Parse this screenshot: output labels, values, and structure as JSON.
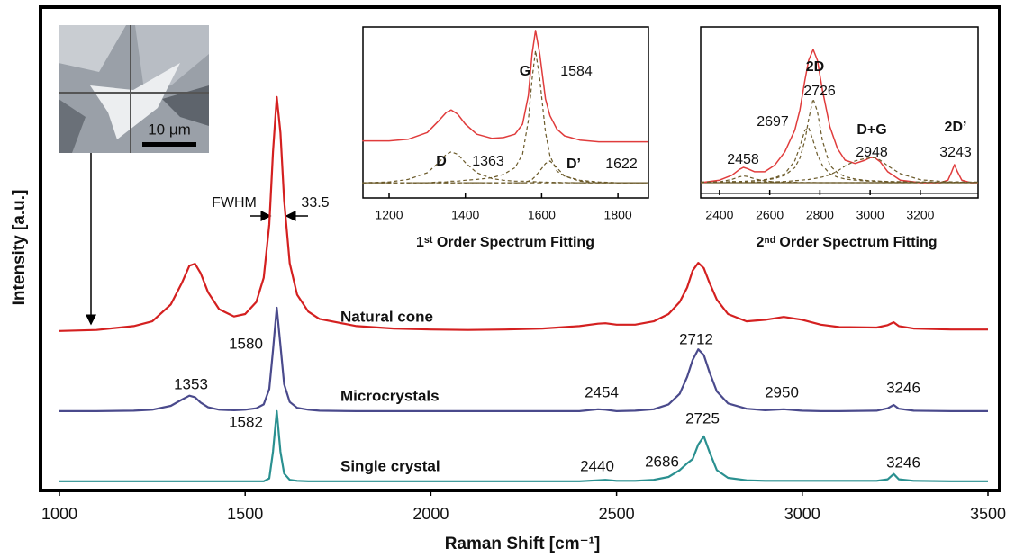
{
  "chart_data": [
    {
      "type": "line",
      "x_label": "Raman Shift [cm⁻¹]",
      "y_label": "Intensity [a.u.]",
      "xlim": [
        1000,
        3500
      ],
      "xticks": [
        1000,
        1500,
        2000,
        2500,
        3000,
        3500
      ],
      "ylim": [
        0,
        100
      ],
      "x": [
        1000,
        1100,
        1200,
        1250,
        1300,
        1330,
        1350,
        1365,
        1380,
        1400,
        1430,
        1470,
        1500,
        1530,
        1550,
        1565,
        1575,
        1585,
        1595,
        1605,
        1620,
        1640,
        1670,
        1700,
        1800,
        1900,
        2000,
        2100,
        2200,
        2300,
        2400,
        2450,
        2470,
        2500,
        2550,
        2600,
        2640,
        2670,
        2690,
        2705,
        2720,
        2735,
        2750,
        2770,
        2800,
        2850,
        2900,
        2950,
        3000,
        3050,
        3100,
        3200,
        3230,
        3246,
        3260,
        3300,
        3400,
        3500
      ],
      "series": [
        {
          "name": "Natural cone",
          "color": "#d42020",
          "peak_labels": [],
          "values": [
            33,
            33.2,
            34,
            35,
            38.5,
            43,
            46.5,
            46.9,
            45,
            41,
            37.5,
            36,
            36.5,
            39,
            44,
            55,
            70,
            81.4,
            74,
            60,
            47,
            40.5,
            37,
            35.5,
            34,
            33.5,
            33.3,
            33.2,
            33.3,
            33.5,
            34,
            34.5,
            34.6,
            34.3,
            34.3,
            35,
            36.5,
            39,
            42,
            45.5,
            47.1,
            46,
            43,
            39.5,
            36.5,
            35,
            35.3,
            35.9,
            35.3,
            34.3,
            33.8,
            33.7,
            34.2,
            34.8,
            34,
            33.5,
            33.3,
            33.3
          ]
        },
        {
          "name": "Microcrystals",
          "color": "#4a4a8c",
          "peak_labels": [
            1353,
            1580,
            2712,
            2454,
            2950,
            3246
          ],
          "values": [
            16.4,
            16.4,
            16.5,
            16.7,
            17.5,
            18.8,
            19.6,
            19.3,
            18.2,
            17.2,
            16.7,
            16.6,
            16.7,
            17,
            17.8,
            21,
            29,
            37.8,
            30,
            22,
            18.3,
            17.1,
            16.7,
            16.5,
            16.4,
            16.4,
            16.4,
            16.4,
            16.4,
            16.4,
            16.4,
            16.8,
            16.7,
            16.4,
            16.5,
            16.8,
            17.8,
            20,
            23.5,
            27,
            29.2,
            28,
            24.5,
            20.5,
            18,
            16.9,
            16.6,
            16.8,
            16.5,
            16.4,
            16.4,
            16.5,
            17,
            17.7,
            16.9,
            16.5,
            16.4,
            16.4
          ]
        },
        {
          "name": "Single crystal",
          "color": "#2a9090",
          "peak_labels": [
            1582,
            2440,
            2686,
            2725,
            3246
          ],
          "values": [
            1.9,
            1.9,
            1.9,
            1.9,
            1.9,
            1.9,
            1.9,
            1.9,
            1.9,
            1.9,
            1.9,
            1.9,
            1.9,
            1.9,
            1.9,
            2.5,
            8,
            16.4,
            8,
            3.5,
            2.2,
            2,
            1.9,
            1.9,
            1.9,
            1.9,
            1.9,
            1.9,
            1.9,
            1.9,
            1.9,
            2.1,
            2.2,
            2,
            2,
            2.2,
            2.8,
            4.2,
            5.6,
            6.5,
            9.5,
            11.2,
            8,
            4.2,
            2.6,
            2.1,
            2,
            2,
            2,
            2,
            2,
            2,
            2.3,
            3.4,
            2.3,
            2,
            1.9,
            1.9
          ]
        }
      ],
      "fwhm": {
        "label": "FWHM",
        "value": 33.5
      },
      "scale_bar": "10 μm"
    },
    {
      "type": "line",
      "title": "1ˢᵗ Order Spectrum Fitting",
      "xlim": [
        1130,
        1880
      ],
      "xticks": [
        1200,
        1400,
        1600,
        1800
      ],
      "ylim": [
        0,
        100
      ],
      "baseline": 8,
      "x": [
        1130,
        1200,
        1250,
        1300,
        1330,
        1350,
        1363,
        1380,
        1400,
        1430,
        1470,
        1500,
        1530,
        1550,
        1565,
        1575,
        1584,
        1595,
        1610,
        1622,
        1640,
        1660,
        1700,
        1750,
        1800,
        1880
      ],
      "series": [
        {
          "color": "#e03c3c",
          "dashed": false,
          "values": [
            33,
            33,
            34,
            38,
            45,
            50,
            51.5,
            49,
            43,
            37,
            34.5,
            35,
            37,
            43,
            60,
            85,
            99,
            85,
            58,
            48,
            40,
            36,
            33.5,
            32.5,
            32.5,
            32.5
          ]
        },
        {
          "color": "#6b5a2a",
          "dashed": true,
          "values": [
            8,
            8.5,
            10,
            14,
            20,
            25,
            26.5,
            25,
            20,
            14,
            10.5,
            9.5,
            9,
            9,
            8.8,
            8.7,
            8.6,
            8.5,
            8.4,
            8.3,
            8.2,
            8.1,
            8,
            8,
            8,
            8
          ]
        },
        {
          "color": "#6b5a2a",
          "dashed": true,
          "values": [
            8,
            8,
            8,
            8,
            8.5,
            8.5,
            9,
            9,
            9.5,
            10,
            11,
            13,
            17,
            25,
            45,
            70,
            87,
            70,
            38,
            24,
            15,
            12,
            9.5,
            8.5,
            8,
            8
          ]
        },
        {
          "color": "#6b5a2a",
          "dashed": true,
          "values": [
            8,
            8,
            8,
            8,
            8,
            8,
            8,
            8,
            8,
            8,
            8,
            8,
            8,
            8,
            9,
            10,
            12,
            15,
            19.5,
            21,
            17,
            12,
            9,
            8,
            8,
            8
          ]
        }
      ],
      "peaks": [
        {
          "name": "D",
          "value": 1363
        },
        {
          "name": "G",
          "value": 1584
        },
        {
          "name": "D’",
          "value": 1622
        }
      ]
    },
    {
      "type": "line",
      "title": "2ⁿᵈ Order Spectrum Fitting",
      "xlim": [
        2325,
        3430
      ],
      "xticks": [
        2400,
        2600,
        2800,
        3000,
        3200
      ],
      "ylim": [
        0,
        100
      ],
      "baseline": 6.5,
      "x": [
        2325,
        2400,
        2450,
        2480,
        2495,
        2510,
        2540,
        2580,
        2620,
        2660,
        2700,
        2720,
        2740,
        2755,
        2773,
        2790,
        2810,
        2840,
        2870,
        2900,
        2940,
        2980,
        3000,
        3017,
        3040,
        3070,
        3120,
        3200,
        3280,
        3310,
        3325,
        3336,
        3348,
        3365,
        3400,
        3430
      ],
      "series": [
        {
          "color": "#e03c3c",
          "dashed": false,
          "values": [
            6.5,
            8,
            11,
            14.5,
            15.7,
            15,
            13,
            13,
            17,
            25,
            38,
            50,
            68,
            80,
            86.5,
            80,
            62,
            40,
            27,
            20,
            18,
            20,
            21.5,
            21.6,
            19,
            13,
            8,
            6.5,
            6.5,
            8,
            13,
            17.3,
            13,
            8,
            6.5,
            6.5
          ]
        },
        {
          "color": "#6b5a2a",
          "dashed": true,
          "values": [
            6.6,
            7,
            8.5,
            10,
            10.5,
            10.2,
            8.8,
            7.5,
            7,
            6.8,
            6.7,
            6.6,
            6.6,
            6.6,
            6.6,
            6.5,
            6.5,
            6.5,
            6.5,
            6.5,
            6.5,
            6.5,
            6.5,
            6.5,
            6.5,
            6.5,
            6.5,
            6.5,
            6.5,
            6.5,
            6.5,
            6.5,
            6.5,
            6.5,
            6.5,
            6.5
          ]
        },
        {
          "color": "#6b5a2a",
          "dashed": true,
          "values": [
            6.8,
            6.9,
            7.1,
            7.2,
            7.3,
            7.4,
            7.7,
            8.3,
            9.4,
            11.8,
            19.6,
            28,
            38,
            39.5,
            31.7,
            23.2,
            16.8,
            11.8,
            9.8,
            8.7,
            8,
            7.5,
            7.4,
            7.3,
            7.2,
            7.1,
            7,
            6.8,
            6.7,
            6.7,
            6.7,
            6.6,
            6.6,
            6.6,
            6.6,
            6.6
          ]
        },
        {
          "color": "#6b5a2a",
          "dashed": true,
          "values": [
            6.8,
            6.9,
            7.1,
            7.2,
            7.3,
            7.4,
            7.6,
            8.1,
            8.9,
            10.9,
            15.5,
            21.2,
            31.8,
            44.6,
            56.8,
            49.2,
            31.8,
            16.8,
            12.4,
            10.1,
            8.7,
            7.9,
            7.7,
            7.6,
            7.4,
            7.2,
            7.1,
            6.9,
            6.8,
            6.8,
            6.7,
            6.7,
            6.7,
            6.7,
            6.6,
            6.6
          ]
        },
        {
          "color": "#6b5a2a",
          "dashed": true,
          "values": [
            6.6,
            6.7,
            6.7,
            6.7,
            6.7,
            6.8,
            6.8,
            6.9,
            7,
            7.2,
            7.7,
            7.9,
            8.2,
            8.4,
            8.8,
            9.3,
            9.9,
            11.3,
            13.4,
            16.5,
            19.5,
            21,
            21.3,
            21.5,
            20,
            16.6,
            11.9,
            8.2,
            7.3,
            7.1,
            7,
            7,
            7,
            6.9,
            6.8,
            6.8
          ]
        }
      ],
      "peaks": [
        {
          "value": 2458
        },
        {
          "value": 2697
        },
        {
          "name": "2D",
          "value": 2726
        },
        {
          "name": "D+G",
          "value": 2948
        },
        {
          "name": "2D’",
          "value": 3243
        }
      ]
    }
  ]
}
